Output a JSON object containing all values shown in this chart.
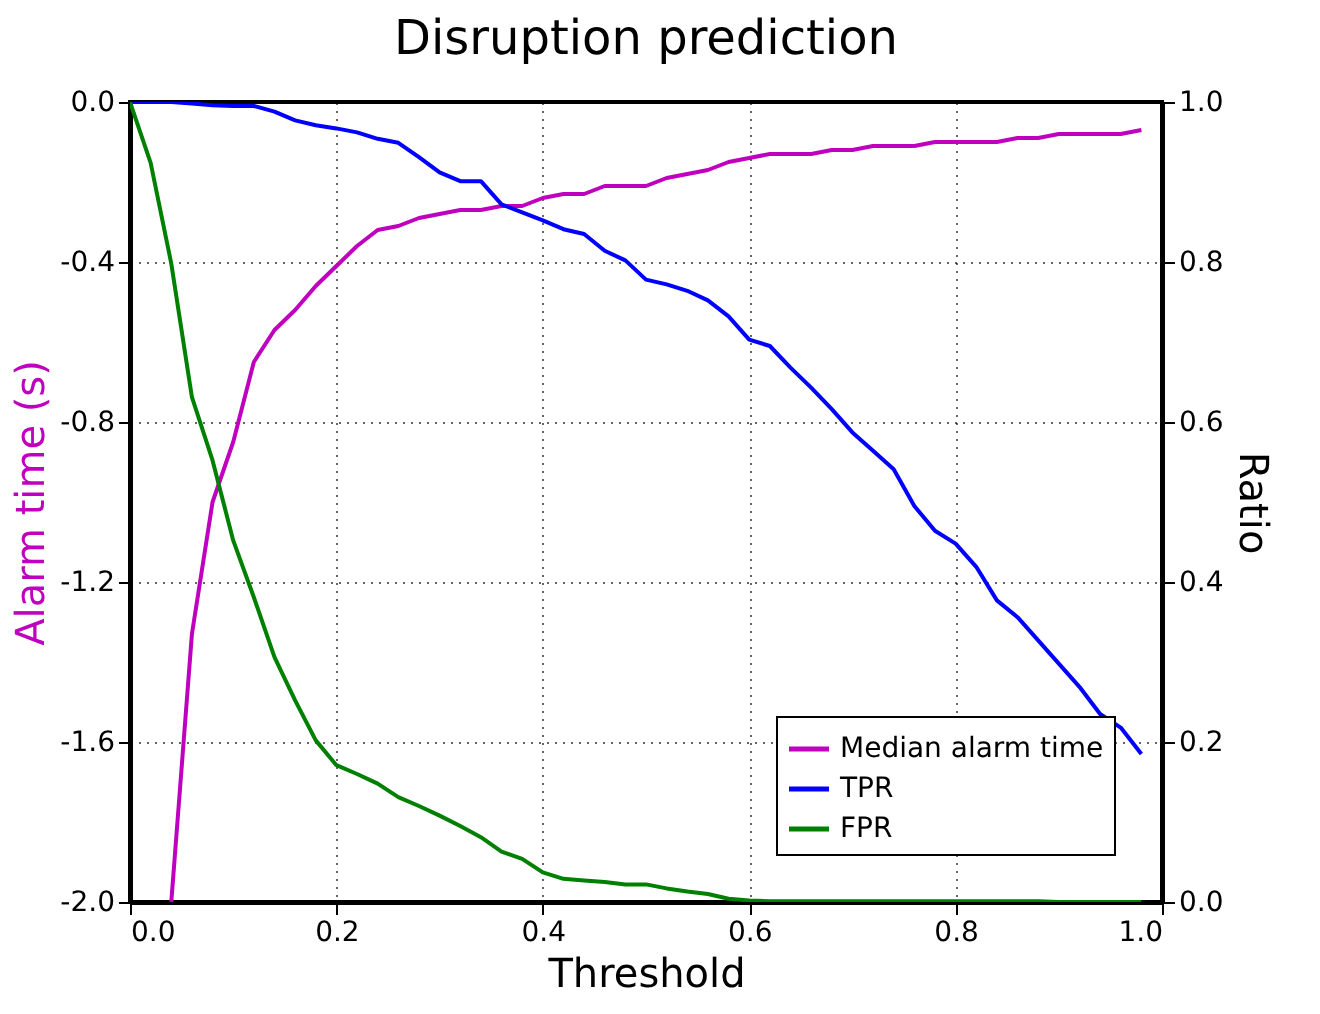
{
  "chart_data": {
    "type": "line",
    "title": "Disruption prediction",
    "xlabel": "Threshold",
    "ylabel": "Alarm time (s)",
    "y2label": "Ratio",
    "x": [
      0.0,
      0.02,
      0.04,
      0.06,
      0.08,
      0.1,
      0.12,
      0.14,
      0.16,
      0.18,
      0.2,
      0.22,
      0.24,
      0.26,
      0.28,
      0.3,
      0.32,
      0.34,
      0.36,
      0.38,
      0.4,
      0.42,
      0.44,
      0.46,
      0.48,
      0.5,
      0.52,
      0.54,
      0.56,
      0.58,
      0.6,
      0.62,
      0.64,
      0.66,
      0.68,
      0.7,
      0.72,
      0.74,
      0.76,
      0.78,
      0.8,
      0.82,
      0.84,
      0.86,
      0.88,
      0.9,
      0.92,
      0.94,
      0.96,
      0.98
    ],
    "series": [
      {
        "name": "Median alarm time",
        "color": "#bf00bf",
        "values": [
          null,
          null,
          -2.0,
          -1.33,
          -1.0,
          -0.85,
          -0.65,
          -0.57,
          -0.52,
          -0.46,
          -0.41,
          -0.36,
          -0.32,
          -0.31,
          -0.29,
          -0.28,
          -0.27,
          -0.27,
          -0.26,
          -0.26,
          -0.24,
          -0.23,
          -0.23,
          -0.21,
          -0.21,
          -0.21,
          -0.19,
          -0.18,
          -0.17,
          -0.15,
          -0.14,
          -0.13,
          -0.13,
          -0.13,
          -0.12,
          -0.12,
          -0.11,
          -0.11,
          -0.11,
          -0.1,
          -0.1,
          -0.1,
          -0.1,
          -0.09,
          -0.09,
          -0.08,
          -0.08,
          -0.08,
          -0.08,
          -0.07
        ]
      },
      {
        "name": "TPR",
        "color": "#0000ff",
        "axis": "y2",
        "values": [
          1.0,
          1.0,
          1.0,
          0.998,
          0.996,
          0.995,
          0.995,
          0.988,
          0.977,
          0.971,
          0.967,
          0.962,
          0.954,
          0.949,
          0.931,
          0.912,
          0.901,
          0.901,
          0.872,
          0.862,
          0.852,
          0.841,
          0.835,
          0.814,
          0.802,
          0.778,
          0.772,
          0.764,
          0.752,
          0.732,
          0.703,
          0.695,
          0.668,
          0.643,
          0.616,
          0.587,
          0.564,
          0.541,
          0.495,
          0.464,
          0.448,
          0.419,
          0.377,
          0.356,
          0.327,
          0.298,
          0.269,
          0.235,
          0.218,
          0.185
        ]
      },
      {
        "name": "FPR",
        "color": "#008000",
        "axis": "y2",
        "values": [
          1.0,
          0.924,
          0.798,
          0.631,
          0.552,
          0.452,
          0.381,
          0.306,
          0.252,
          0.202,
          0.171,
          0.16,
          0.148,
          0.131,
          0.12,
          0.108,
          0.095,
          0.081,
          0.063,
          0.054,
          0.037,
          0.029,
          0.027,
          0.025,
          0.022,
          0.022,
          0.017,
          0.013,
          0.01,
          0.004,
          0.002,
          0.001,
          0.001,
          0.001,
          0.001,
          0.001,
          0.001,
          0.001,
          0.001,
          0.001,
          0.001,
          0.001,
          0.001,
          0.001,
          0.001,
          0.0,
          0.0,
          0.0,
          0.0,
          0.0
        ]
      }
    ],
    "xlim": [
      0.0,
      1.0
    ],
    "xticks": [
      {
        "value": 0,
        "label": "0.0"
      },
      0.2,
      0.4,
      0.6,
      0.8,
      {
        "value": 1,
        "label": "1.0"
      }
    ],
    "ylim": [
      -2.0,
      0.0
    ],
    "yticks": [
      {
        "value": -2,
        "label": "-2.0"
      },
      -1.6,
      -1.2,
      -0.8,
      -0.4,
      {
        "value": 0,
        "label": "0.0"
      }
    ],
    "y2lim": [
      0.0,
      1.0
    ],
    "y2ticks": [
      {
        "value": 0,
        "label": "0.0"
      },
      0.2,
      0.4,
      0.6,
      0.8,
      {
        "value": 1,
        "label": "1.0"
      }
    ],
    "grid": true,
    "legend": "bottom right",
    "line_style": "solid",
    "marker": "none"
  }
}
